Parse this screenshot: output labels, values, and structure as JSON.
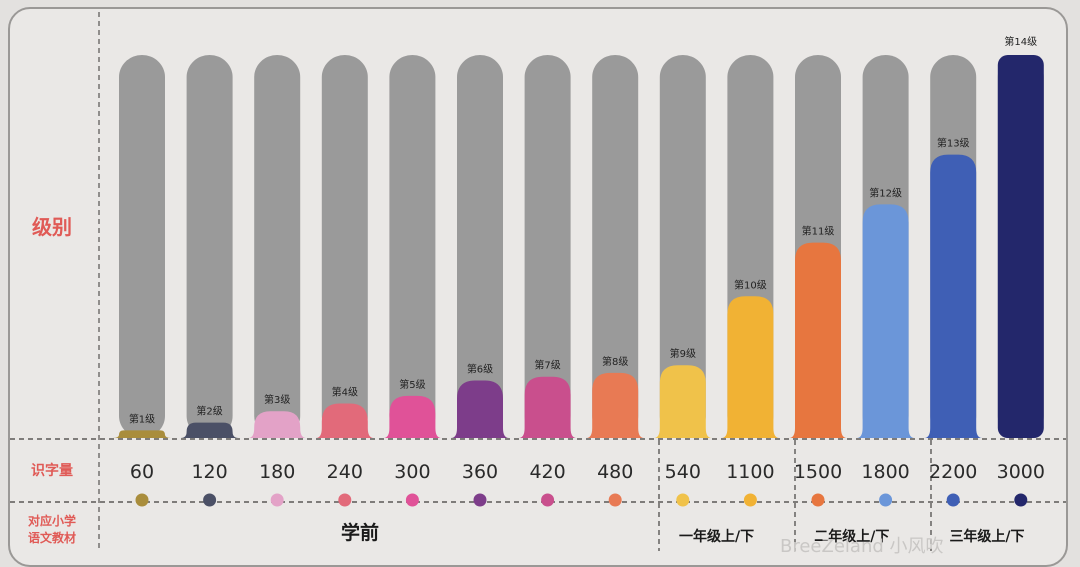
{
  "chart_data": {
    "type": "bar",
    "row_labels": {
      "level": "级别",
      "characters": "识字量",
      "textbook": "对应小学\n语文教材"
    },
    "categories": [
      "第1级",
      "第2级",
      "第3级",
      "第4级",
      "第5级",
      "第6级",
      "第7级",
      "第8级",
      "第9级",
      "第10级",
      "第11级",
      "第12级",
      "第13级",
      "第14级"
    ],
    "values": [
      60,
      120,
      180,
      240,
      300,
      360,
      420,
      480,
      540,
      1100,
      1500,
      1800,
      2200,
      3000
    ],
    "fill_fraction": [
      0.02,
      0.04,
      0.07,
      0.09,
      0.11,
      0.15,
      0.16,
      0.17,
      0.19,
      0.37,
      0.51,
      0.61,
      0.74,
      1.0
    ],
    "colors": [
      "#a98d3c",
      "#4b5066",
      "#e3a2c7",
      "#e26a7a",
      "#e05298",
      "#7d3d8a",
      "#c94f8d",
      "#e87a54",
      "#f0c24a",
      "#f1b234",
      "#e7763f",
      "#6b96d9",
      "#3f5fb5",
      "#23276b"
    ],
    "track_color": "#9a9a9a",
    "label_color": "#e05a56",
    "grades": [
      {
        "label": "学前",
        "span": [
          0,
          7
        ]
      },
      {
        "label": "一年级上/下",
        "span": [
          8,
          9
        ]
      },
      {
        "label": "二年级上/下",
        "span": [
          10,
          11
        ]
      },
      {
        "label": "三年级上/下",
        "span": [
          12,
          13
        ]
      }
    ]
  },
  "watermark": "BreeZeland 小风吹"
}
